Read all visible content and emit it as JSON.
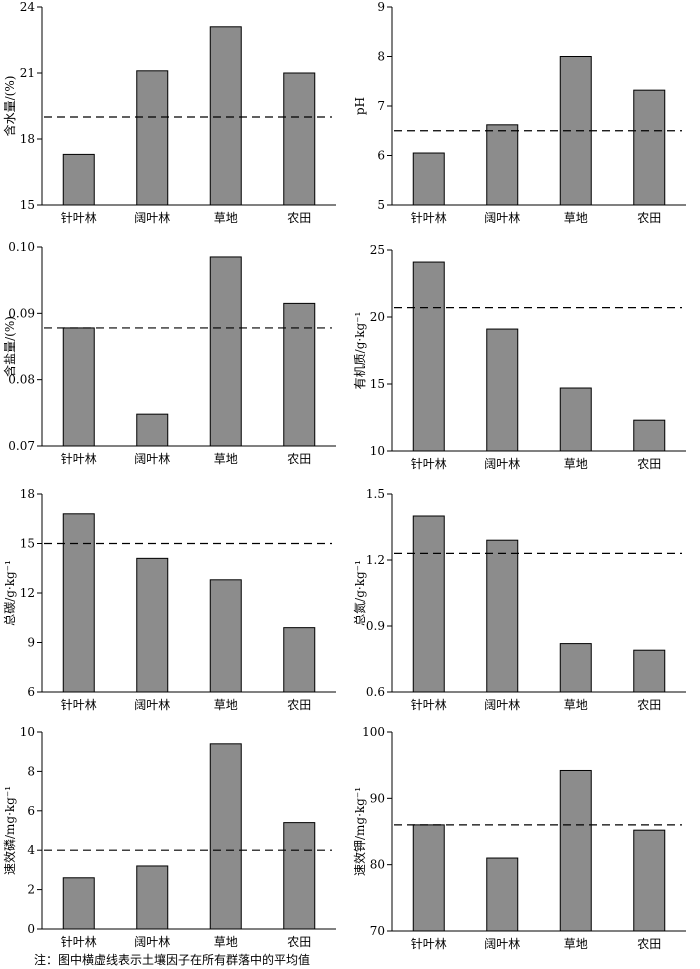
{
  "chart_data": [
    {
      "type": "bar",
      "categories": [
        "针叶林",
        "阔叶林",
        "草地",
        "农田"
      ],
      "values": [
        17.3,
        21.1,
        23.1,
        21.0
      ],
      "ylabel": "含水量/(%)",
      "ylim": [
        15,
        24
      ],
      "yticks": [
        15,
        18,
        21,
        24
      ],
      "mean_line": 19.0,
      "bar_color": "#8c8c8c"
    },
    {
      "type": "bar",
      "categories": [
        "针叶林",
        "阔叶林",
        "草地",
        "农田"
      ],
      "values": [
        6.05,
        6.62,
        8.0,
        7.32
      ],
      "ylabel": "pH",
      "ylim": [
        5,
        9
      ],
      "yticks": [
        5,
        6,
        7,
        8,
        9
      ],
      "mean_line": 6.5,
      "bar_color": "#8c8c8c"
    },
    {
      "type": "bar",
      "categories": [
        "针叶林",
        "阔叶林",
        "草地",
        "农田"
      ],
      "values": [
        0.0878,
        0.0748,
        0.0985,
        0.0915
      ],
      "ylabel": "含盐量/(%)",
      "ylim": [
        0.07,
        0.1
      ],
      "yticks": [
        0.07,
        0.08,
        0.09,
        0.1
      ],
      "ytick_labels": [
        "0.07",
        "0.08",
        "0.09",
        "0.10"
      ],
      "mean_line": 0.0878,
      "bar_color": "#8c8c8c"
    },
    {
      "type": "bar",
      "categories": [
        "针叶林",
        "阔叶林",
        "草地",
        "农田"
      ],
      "values": [
        24.1,
        19.1,
        14.7,
        12.3
      ],
      "ylabel": "有机质/g·kg⁻¹",
      "ylim": [
        10,
        25
      ],
      "yticks": [
        10,
        15,
        20,
        25
      ],
      "mean_line": 20.7,
      "bar_color": "#8c8c8c"
    },
    {
      "type": "bar",
      "categories": [
        "针叶林",
        "阔叶林",
        "草地",
        "农田"
      ],
      "values": [
        16.8,
        14.1,
        12.8,
        9.9
      ],
      "ylabel": "总碳/g·kg⁻¹",
      "ylim": [
        6,
        18
      ],
      "yticks": [
        6,
        9,
        12,
        15,
        18
      ],
      "mean_line": 15.0,
      "bar_color": "#8c8c8c"
    },
    {
      "type": "bar",
      "categories": [
        "针叶林",
        "阔叶林",
        "草地",
        "农田"
      ],
      "values": [
        1.4,
        1.29,
        0.82,
        0.79
      ],
      "ylabel": "总氮/g·kg⁻¹",
      "ylim": [
        0.6,
        1.5
      ],
      "yticks": [
        0.6,
        0.9,
        1.2,
        1.5
      ],
      "ytick_labels": [
        "0.6",
        "0.9",
        "1.2",
        "1.5"
      ],
      "mean_line": 1.23,
      "bar_color": "#8c8c8c"
    },
    {
      "type": "bar",
      "categories": [
        "针叶林",
        "阔叶林",
        "草地",
        "农田"
      ],
      "values": [
        2.6,
        3.2,
        9.4,
        5.4
      ],
      "ylabel": "速效磷/mg·kg⁻¹",
      "ylim": [
        0,
        10
      ],
      "yticks": [
        0,
        2,
        4,
        6,
        8,
        10
      ],
      "mean_line": 4.0,
      "bar_color": "#8c8c8c"
    },
    {
      "type": "bar",
      "categories": [
        "针叶林",
        "阔叶林",
        "草地",
        "农田"
      ],
      "values": [
        86.0,
        81.0,
        94.2,
        85.2
      ],
      "ylabel": "速效钾/mg·kg⁻¹",
      "ylim": [
        70,
        100
      ],
      "yticks": [
        70,
        80,
        90,
        100
      ],
      "mean_line": 86.0,
      "bar_color": "#8c8c8c"
    }
  ],
  "note": "注：图中横虚线表示土壤因子在所有群落中的平均值"
}
